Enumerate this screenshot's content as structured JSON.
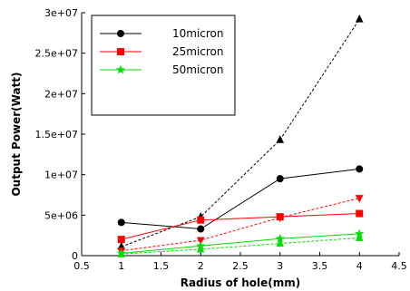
{
  "chart_data": {
    "type": "line",
    "xlabel": "Radius of hole(mm)",
    "ylabel": "Output Power(Watt)",
    "xlim": [
      0.5,
      4.5
    ],
    "ylim": [
      0,
      30000000
    ],
    "xticks": [
      "0.5",
      "1",
      "1.5",
      "2",
      "2.5",
      "3",
      "3.5",
      "4",
      "4.5"
    ],
    "yticks": [
      "0",
      "5e+06",
      "1e+07",
      "1.5e+07",
      "2e+07",
      "2.5e+07",
      "3e+07"
    ],
    "grid": false,
    "legend_position": "top-left",
    "series": [
      {
        "name": "10micron",
        "color": "#000000",
        "marker": "circle",
        "dash": "solid",
        "x": [
          1,
          2,
          3,
          4
        ],
        "y": [
          4100000,
          3300000,
          9500000,
          10700000
        ]
      },
      {
        "name": "",
        "color": "#000000",
        "marker": "triangle",
        "dash": "dashed",
        "x": [
          1,
          2,
          3,
          4
        ],
        "y": [
          1100000,
          4800000,
          14300000,
          29200000
        ]
      },
      {
        "name": "25micron",
        "color": "#ff0000",
        "marker": "square",
        "dash": "solid",
        "x": [
          1,
          2,
          3,
          4
        ],
        "y": [
          2000000,
          4400000,
          4800000,
          5200000
        ]
      },
      {
        "name": "",
        "color": "#ff0000",
        "marker": "triangle-down",
        "dash": "dashed",
        "x": [
          1,
          2,
          3,
          4
        ],
        "y": [
          600000,
          1900000,
          4700000,
          7100000
        ]
      },
      {
        "name": "50micron",
        "color": "#00dd00",
        "marker": "star",
        "dash": "solid",
        "x": [
          1,
          2,
          3,
          4
        ],
        "y": [
          300000,
          1200000,
          2100000,
          2700000
        ]
      },
      {
        "name": "",
        "color": "#00dd00",
        "marker": "triangle",
        "dash": "dashed",
        "x": [
          1,
          2,
          3,
          4
        ],
        "y": [
          200000,
          800000,
          1500000,
          2200000
        ]
      }
    ]
  }
}
